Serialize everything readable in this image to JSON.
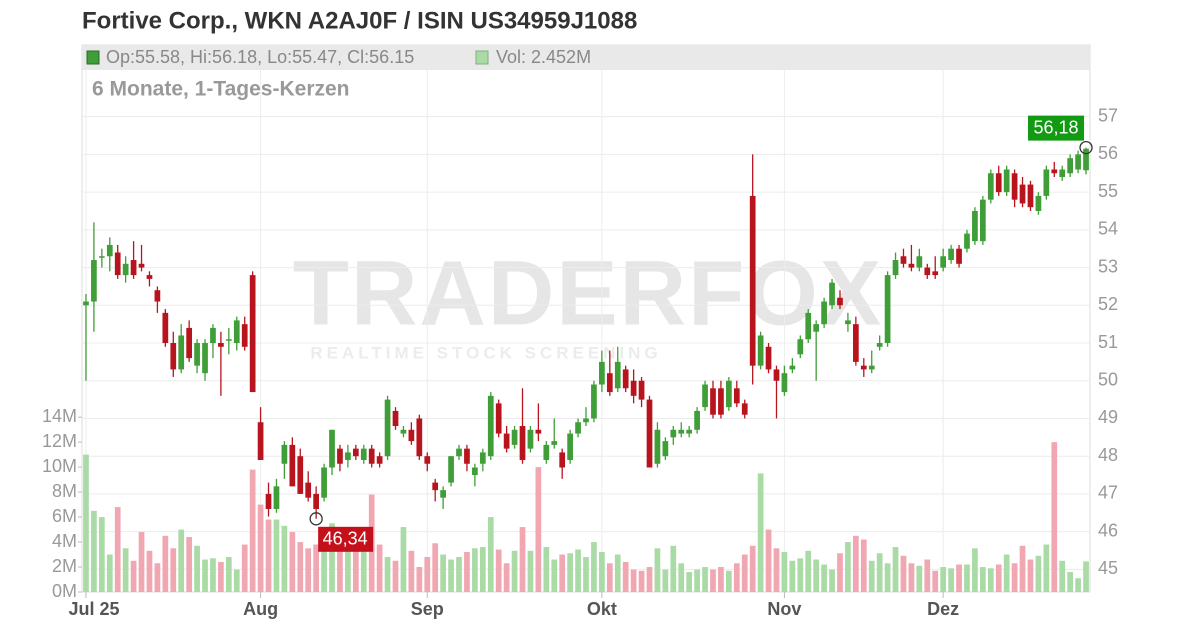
{
  "chart_data": {
    "type": "candlestick",
    "title": "Fortive Corp., WKN A2AJ0F / ISIN US34959J1088",
    "info": "Op:55.58, Hi:56.18, Lo:55.47, Cl:56.15",
    "volume_info": "Vol: 2.452M",
    "subtitle": "6 Monate, 1-Tages-Kerzen",
    "watermark": "TRADERFOX",
    "watermark_sub": "REALTIME STOCK SCREENING",
    "max_label": "56,18",
    "min_label": "46,34",
    "up_color": "#3f9e37",
    "down_color": "#b8141e",
    "volume_up_color": "#aadba6",
    "volume_down_color": "#f1a7b1",
    "xlim": [
      -0.5,
      126.5
    ],
    "xticks": [
      {
        "value": 0,
        "label": "Jul 25"
      },
      {
        "value": 22,
        "label": "Aug"
      },
      {
        "value": 43,
        "label": "Sep"
      },
      {
        "value": 65,
        "label": "Okt"
      },
      {
        "value": 88,
        "label": "Nov"
      },
      {
        "value": 108,
        "label": "Dez"
      }
    ],
    "ylim": [
      44.4,
      58.9
    ],
    "yticks": [
      45,
      46,
      47,
      48,
      49,
      50,
      51,
      52,
      53,
      54,
      55,
      56,
      57
    ],
    "y2lim": [
      0,
      43.8
    ],
    "y2ticks": [
      {
        "value": 0,
        "label": "0M"
      },
      {
        "value": 2,
        "label": "2M"
      },
      {
        "value": 4,
        "label": "4M"
      },
      {
        "value": 6,
        "label": "6M"
      },
      {
        "value": 8,
        "label": "8M"
      },
      {
        "value": 10,
        "label": "10M"
      },
      {
        "value": 12,
        "label": "12M"
      },
      {
        "value": 14,
        "label": "14M"
      }
    ],
    "grid": true,
    "open": [
      52.0,
      52.1,
      53.3,
      53.3,
      53.4,
      52.8,
      53.2,
      53.1,
      52.8,
      52.4,
      51.8,
      51.0,
      50.3,
      51.4,
      50.4,
      50.2,
      51.0,
      51.0,
      51.1,
      51.0,
      51.5,
      52.8,
      48.9,
      47.0,
      46.6,
      47.8,
      48.3,
      48.0,
      47.3,
      47.0,
      46.9,
      47.7,
      48.2,
      47.9,
      48.2,
      47.9,
      48.2,
      48.0,
      48.0,
      49.2,
      48.6,
      48.7,
      49.0,
      48.0,
      47.3,
      46.9,
      47.3,
      48.0,
      48.2,
      47.5,
      47.8,
      48.0,
      49.4,
      48.6,
      48.3,
      48.8,
      48.2,
      48.7,
      47.9,
      48.3,
      48.1,
      47.9,
      48.6,
      48.9,
      49.0,
      49.9,
      50.2,
      49.8,
      50.3,
      50.0,
      50.0,
      49.5,
      47.8,
      48.0,
      48.5,
      48.6,
      48.6,
      48.7,
      49.3,
      49.8,
      49.8,
      49.3,
      49.8,
      49.4,
      54.9,
      50.4,
      50.9,
      50.3,
      49.7,
      50.3,
      50.7,
      51.1,
      51.3,
      51.5,
      52.0,
      52.2,
      51.5,
      51.5,
      50.4,
      50.3,
      50.9,
      51.0,
      52.8,
      53.3,
      53.1,
      53.0,
      53.0,
      52.9,
      53.0,
      53.2,
      53.5,
      53.5,
      53.7,
      53.7,
      54.8,
      55.5,
      55.0,
      55.5,
      55.2,
      55.2,
      54.5,
      54.9,
      55.6,
      55.4,
      55.5,
      55.6,
      55.58
    ],
    "high": [
      52.3,
      54.2,
      53.5,
      53.8,
      53.6,
      53.3,
      53.7,
      53.6,
      52.9,
      52.5,
      51.9,
      51.3,
      51.5,
      51.6,
      51.1,
      51.1,
      51.5,
      51.3,
      51.4,
      51.7,
      51.7,
      52.9,
      49.3,
      47.3,
      47.4,
      48.4,
      48.5,
      48.2,
      47.6,
      47.2,
      47.8,
      48.7,
      48.3,
      48.3,
      48.3,
      48.3,
      48.3,
      48.1,
      49.6,
      49.3,
      48.8,
      48.9,
      49.1,
      48.1,
      47.4,
      47.2,
      48.0,
      48.3,
      48.3,
      47.8,
      48.2,
      49.7,
      49.5,
      48.8,
      48.8,
      49.8,
      48.8,
      49.4,
      48.4,
      49.0,
      48.2,
      48.7,
      49.0,
      49.3,
      50.0,
      50.8,
      50.8,
      50.9,
      50.4,
      50.3,
      50.1,
      49.6,
      48.9,
      48.5,
      48.8,
      48.9,
      48.8,
      49.3,
      50.0,
      50.0,
      50.0,
      50.1,
      50.0,
      49.5,
      56.0,
      51.3,
      51.0,
      50.4,
      50.4,
      50.6,
      51.2,
      51.9,
      51.6,
      52.2,
      52.7,
      52.4,
      51.8,
      51.7,
      50.6,
      50.8,
      51.2,
      52.9,
      53.4,
      53.5,
      53.6,
      53.5,
      53.1,
      53.3,
      53.5,
      53.6,
      53.6,
      54.0,
      54.6,
      54.9,
      55.6,
      55.7,
      55.7,
      55.6,
      55.4,
      55.3,
      55.0,
      55.7,
      55.8,
      55.7,
      56.0,
      56.1,
      56.18
    ],
    "low": [
      50.0,
      51.3,
      53.0,
      52.9,
      52.7,
      52.6,
      52.7,
      52.9,
      52.5,
      51.8,
      50.9,
      50.1,
      50.2,
      50.5,
      50.2,
      50.0,
      50.6,
      49.6,
      50.7,
      50.8,
      50.8,
      49.7,
      47.9,
      46.4,
      46.5,
      47.4,
      47.2,
      47.0,
      46.8,
      46.34,
      46.8,
      47.5,
      47.6,
      47.7,
      47.9,
      47.8,
      47.7,
      47.7,
      47.9,
      48.7,
      48.5,
      48.3,
      47.9,
      47.6,
      46.8,
      46.6,
      47.2,
      47.9,
      47.6,
      47.2,
      47.6,
      47.9,
      48.5,
      48.1,
      48.2,
      47.8,
      48.1,
      48.4,
      47.8,
      48.2,
      47.4,
      47.8,
      48.5,
      48.8,
      48.9,
      49.7,
      49.6,
      49.7,
      49.7,
      49.4,
      49.3,
      47.7,
      47.7,
      47.9,
      48.3,
      48.5,
      48.5,
      48.6,
      49.2,
      49.0,
      49.0,
      49.2,
      49.3,
      49.0,
      49.9,
      50.3,
      50.2,
      49.0,
      49.6,
      50.2,
      50.6,
      51.0,
      50.0,
      51.4,
      51.9,
      51.9,
      51.3,
      50.4,
      50.1,
      50.2,
      50.8,
      50.9,
      52.7,
      53.0,
      52.9,
      52.9,
      52.7,
      52.7,
      52.9,
      53.1,
      53.0,
      53.4,
      53.6,
      53.6,
      54.7,
      54.9,
      54.9,
      54.6,
      54.6,
      54.5,
      54.4,
      54.8,
      55.4,
      55.3,
      55.4,
      55.5,
      55.47
    ],
    "close": [
      52.1,
      53.2,
      53.3,
      53.6,
      52.8,
      53.1,
      52.8,
      53.0,
      52.7,
      52.1,
      51.0,
      50.3,
      51.2,
      50.6,
      51.0,
      51.0,
      51.4,
      50.9,
      51.1,
      51.6,
      50.9,
      49.7,
      47.9,
      46.6,
      47.2,
      48.3,
      47.2,
      47.0,
      46.9,
      46.6,
      47.7,
      48.7,
      47.8,
      48.1,
      48.0,
      48.2,
      47.8,
      47.8,
      49.5,
      48.8,
      48.7,
      48.4,
      48.0,
      47.8,
      47.1,
      47.1,
      48.0,
      48.2,
      47.8,
      47.7,
      48.1,
      49.6,
      48.6,
      48.2,
      48.7,
      47.9,
      48.7,
      48.6,
      48.3,
      48.4,
      47.7,
      48.6,
      48.9,
      49.0,
      49.9,
      50.5,
      49.7,
      50.5,
      49.8,
      49.6,
      49.5,
      47.7,
      48.7,
      48.4,
      48.7,
      48.7,
      48.7,
      49.2,
      49.9,
      49.1,
      49.1,
      50.0,
      49.4,
      49.1,
      50.4,
      51.2,
      50.3,
      50.0,
      50.2,
      50.4,
      51.1,
      51.8,
      51.5,
      52.1,
      52.6,
      52.0,
      51.6,
      50.5,
      50.3,
      50.4,
      51.0,
      52.8,
      53.2,
      53.1,
      53.0,
      53.3,
      52.8,
      52.8,
      53.3,
      53.5,
      53.1,
      53.9,
      54.5,
      54.8,
      55.5,
      55.0,
      55.6,
      54.8,
      54.7,
      54.6,
      54.9,
      55.6,
      55.5,
      55.6,
      55.9,
      56.0,
      56.15
    ],
    "volume": [
      11.0,
      6.5,
      6.0,
      3.0,
      6.8,
      3.5,
      2.5,
      4.8,
      3.3,
      2.3,
      4.5,
      3.5,
      5.0,
      4.4,
      3.7,
      2.6,
      2.7,
      2.4,
      2.8,
      1.8,
      3.8,
      9.8,
      7.0,
      5.8,
      5.8,
      5.3,
      4.8,
      4.0,
      3.5,
      3.8,
      5.1,
      5.5,
      4.9,
      5.2,
      3.5,
      4.0,
      7.8,
      3.8,
      2.8,
      2.5,
      5.2,
      3.3,
      2.0,
      2.8,
      3.9,
      3.0,
      2.6,
      2.8,
      3.2,
      3.5,
      3.6,
      6.0,
      3.4,
      2.3,
      3.3,
      5.2,
      3.3,
      10.0,
      3.6,
      2.6,
      3.0,
      3.1,
      3.4,
      2.8,
      4.0,
      3.2,
      2.3,
      3.0,
      2.4,
      1.8,
      1.7,
      2.0,
      3.5,
      1.8,
      3.7,
      2.3,
      1.6,
      1.8,
      2.0,
      1.8,
      2.0,
      1.7,
      2.3,
      3.0,
      3.7,
      9.5,
      5.0,
      3.5,
      3.2,
      2.5,
      2.7,
      3.3,
      2.6,
      2.2,
      1.8,
      3.1,
      4.0,
      4.5,
      4.2,
      2.5,
      3.1,
      2.3,
      3.6,
      2.9,
      2.3,
      2.1,
      2.6,
      1.7,
      2.0,
      1.9,
      2.2,
      2.2,
      3.5,
      2.0,
      1.9,
      2.2,
      3.0,
      2.3,
      3.7,
      2.6,
      2.9,
      3.8,
      12.0,
      2.5,
      1.6,
      1.1,
      2.452
    ]
  }
}
